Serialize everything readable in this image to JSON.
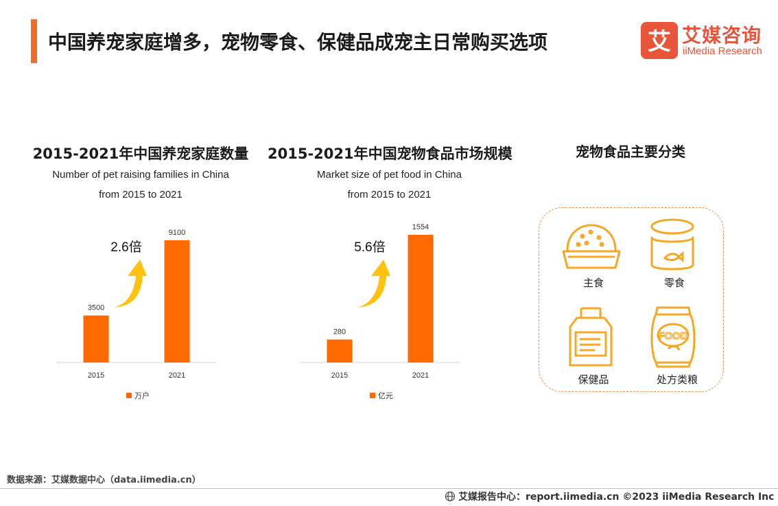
{
  "header": {
    "title": "中国养宠家庭增多，宠物零食、保健品成宠主日常购买选项",
    "brand_cn": "艾媒咨询",
    "brand_en": "iiMedia Research",
    "brand_mark": "艾",
    "accent_color": "#f26b2a",
    "brand_color": "#e8553a"
  },
  "chart_data": [
    {
      "type": "bar",
      "title": "2015-2021年中国养宠家庭数量",
      "subtitle_line1": "Number of pet raising families in China",
      "subtitle_line2": "from 2015 to 2021",
      "categories": [
        "2015",
        "2021"
      ],
      "series": [
        {
          "name": "万户",
          "values": [
            3500,
            9100
          ]
        }
      ],
      "value_labels": [
        "3500",
        "9100"
      ],
      "annotation": "2.6倍",
      "ylim": [
        0,
        9500
      ],
      "bar_color": "#ff6a00",
      "legend": "bottom"
    },
    {
      "type": "bar",
      "title": "2015-2021年中国宠物食品市场规模",
      "subtitle_line1": "Market size of pet food in China",
      "subtitle_line2": "from 2015 to 2021",
      "categories": [
        "2015",
        "2021"
      ],
      "series": [
        {
          "name": "亿元",
          "values": [
            280,
            1554
          ]
        }
      ],
      "value_labels": [
        "280",
        "1554"
      ],
      "annotation": "5.6倍",
      "ylim": [
        0,
        1554
      ],
      "bar_color": "#ff6a00",
      "legend": "bottom"
    }
  ],
  "categories_panel": {
    "title": "宠物食品主要分类",
    "items": [
      {
        "label": "主食",
        "icon": "food-bowl-icon"
      },
      {
        "label": "零食",
        "icon": "snack-can-icon"
      },
      {
        "label": "保健品",
        "icon": "supplement-jar-icon"
      },
      {
        "label": "处方类粮",
        "icon": "food-bag-icon"
      }
    ],
    "icon_color": "#f5a623"
  },
  "footer": {
    "source": "数据来源：艾媒数据中心（data.iimedia.cn）",
    "report": "艾媒报告中心：report.iimedia.cn   ©2023  iiMedia Research Inc"
  }
}
